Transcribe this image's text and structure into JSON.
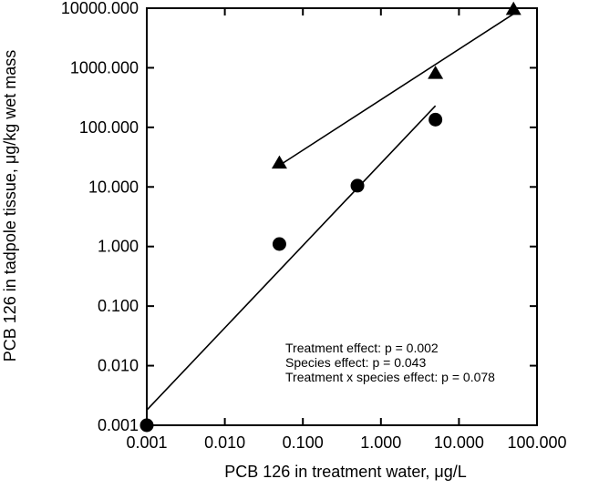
{
  "chart_data": {
    "type": "scatter",
    "xlabel": "PCB 126 in treatment water, μg/L",
    "ylabel": "PCB 126 in tadpole tissue, μg/kg wet mass",
    "x_scale": "log",
    "y_scale": "log",
    "xlim": [
      0.001,
      100
    ],
    "ylim": [
      0.001,
      10000
    ],
    "x_ticks": [
      0.001,
      0.01,
      0.1,
      1,
      10,
      100
    ],
    "x_tick_labels": [
      "0.001",
      "0.010",
      "0.100",
      "1.000",
      "10.000",
      "100.000"
    ],
    "y_ticks": [
      0.001,
      0.01,
      0.1,
      1,
      10,
      100,
      1000,
      10000
    ],
    "y_tick_labels": [
      "0.001",
      "0.010",
      "0.100",
      "1.000",
      "10.000",
      "100.000",
      "1000.000",
      "10000.000"
    ],
    "grid": false,
    "series": [
      {
        "marker": "circle",
        "points": [
          {
            "x": 0.001,
            "y": 0.001
          },
          {
            "x": 0.05,
            "y": 1.1
          },
          {
            "x": 0.5,
            "y": 10.5
          },
          {
            "x": 5,
            "y": 135
          }
        ],
        "fit": {
          "x": [
            0.001,
            5
          ],
          "y": [
            0.0018,
            230
          ]
        }
      },
      {
        "marker": "triangle",
        "points": [
          {
            "x": 0.05,
            "y": 25
          },
          {
            "x": 5,
            "y": 800
          },
          {
            "x": 50,
            "y": 9500
          }
        ],
        "fit": {
          "x": [
            0.05,
            50
          ],
          "y": [
            23,
            8000
          ]
        }
      }
    ],
    "annotations": [
      "Treatment effect: p = 0.002",
      "Species effect: p = 0.043",
      "Treatment x species effect: p = 0.078"
    ]
  }
}
